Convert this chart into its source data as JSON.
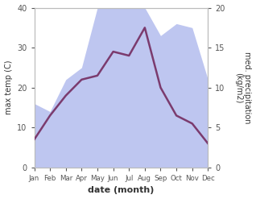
{
  "months": [
    "Jan",
    "Feb",
    "Mar",
    "Apr",
    "May",
    "Jun",
    "Jul",
    "Aug",
    "Sep",
    "Oct",
    "Nov",
    "Dec"
  ],
  "temperature": [
    7,
    13,
    18,
    22,
    23,
    29,
    28,
    35,
    20,
    13,
    11,
    6
  ],
  "precipitation": [
    8,
    7,
    11,
    12.5,
    20,
    20,
    20,
    20,
    16.5,
    18,
    17.5,
    11
  ],
  "temp_color": "#7B3B6E",
  "precip_color": "#b3bcee",
  "ylabel_left": "max temp (C)",
  "ylabel_right": "med. precipitation\n(kg/m2)",
  "xlabel": "date (month)",
  "ylim_left": [
    0,
    40
  ],
  "ylim_right": [
    0,
    20
  ],
  "background_color": "#ffffff",
  "label_fontsize": 8,
  "tick_fontsize": 7
}
